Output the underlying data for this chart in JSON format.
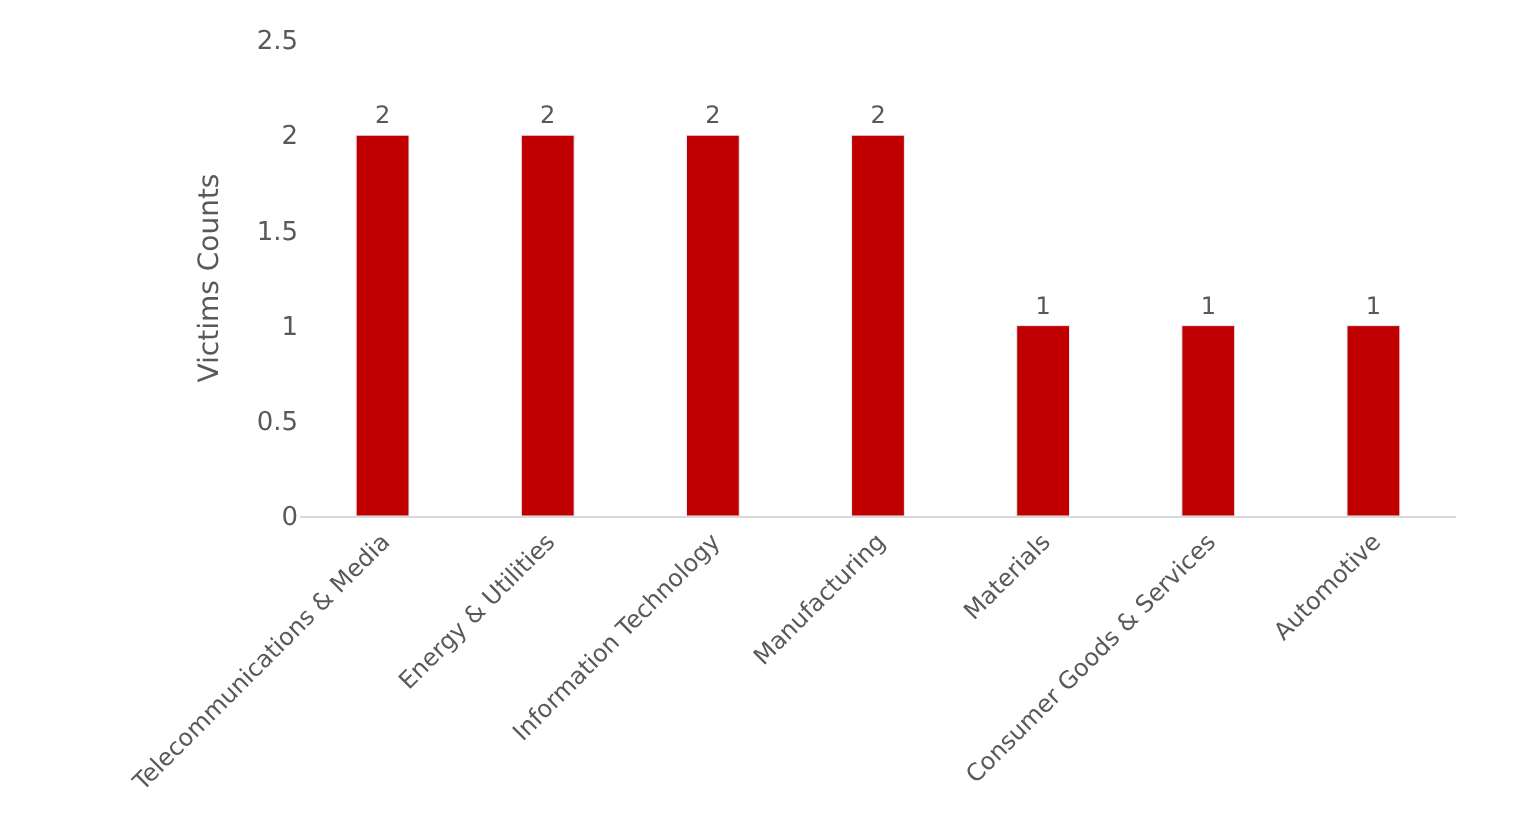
{
  "chart_data": {
    "type": "bar",
    "ylabel": "Victims Counts",
    "categories": [
      "Telecommunications & Media",
      "Energy & Utilities",
      "Information Technology",
      "Manufacturing",
      "Materials",
      "Consumer Goods & Services",
      "Automotive"
    ],
    "values": [
      2,
      2,
      2,
      2,
      1,
      1,
      1
    ],
    "color": "#c00000",
    "ylim": [
      0,
      2.5
    ],
    "yticks": [
      0,
      0.5,
      1,
      1.5,
      2,
      2.5
    ],
    "data_labels": true
  }
}
